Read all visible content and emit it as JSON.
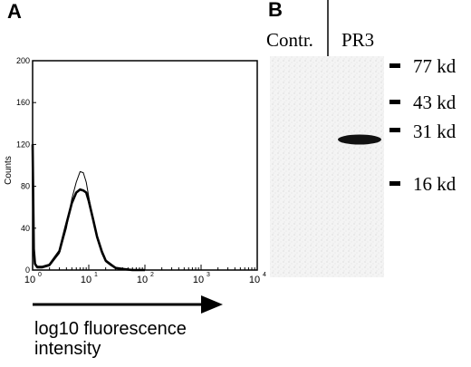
{
  "panels": {
    "a": {
      "letter": "A"
    },
    "b": {
      "letter": "B"
    }
  },
  "chart_data": {
    "type": "line",
    "title": "",
    "xlabel": "log10 fluorescence intensity",
    "ylabel": "Counts",
    "xscale": "log",
    "xlim": [
      1,
      10000
    ],
    "ylim": [
      0,
      200
    ],
    "yticks": [
      0,
      40,
      80,
      120,
      160,
      200
    ],
    "xticks": [
      {
        "base": "10",
        "exp": "0"
      },
      {
        "base": "10",
        "exp": "1"
      },
      {
        "base": "10",
        "exp": "2"
      },
      {
        "base": "10",
        "exp": "3"
      },
      {
        "base": "10",
        "exp": "4"
      }
    ],
    "grid": false,
    "series": [
      {
        "style": "thin",
        "x": [
          1,
          1.05,
          1.1,
          1.2,
          1.5,
          2,
          3,
          4,
          5,
          6,
          7,
          8,
          9,
          10,
          12,
          14,
          17,
          20,
          25,
          30,
          40,
          60,
          100
        ],
        "y": [
          100,
          25,
          5,
          2,
          2,
          4,
          16,
          40,
          68,
          84,
          94,
          93,
          84,
          70,
          48,
          30,
          16,
          8,
          4,
          2,
          1,
          0,
          0
        ]
      },
      {
        "style": "thick",
        "x": [
          1,
          1.05,
          1.1,
          1.2,
          1.5,
          2,
          3,
          4,
          5,
          6,
          7,
          8,
          9,
          10,
          12,
          14,
          17,
          20,
          25,
          30,
          40,
          60,
          100
        ],
        "y": [
          120,
          20,
          6,
          3,
          3,
          5,
          18,
          44,
          64,
          74,
          77,
          76,
          74,
          66,
          48,
          32,
          18,
          9,
          5,
          2,
          1,
          0,
          0
        ]
      }
    ]
  },
  "blot": {
    "lanes": [
      "Contr.",
      "PR3"
    ],
    "markers": [
      "77 kd",
      "43 kd",
      "31 kd",
      "16 kd"
    ]
  }
}
